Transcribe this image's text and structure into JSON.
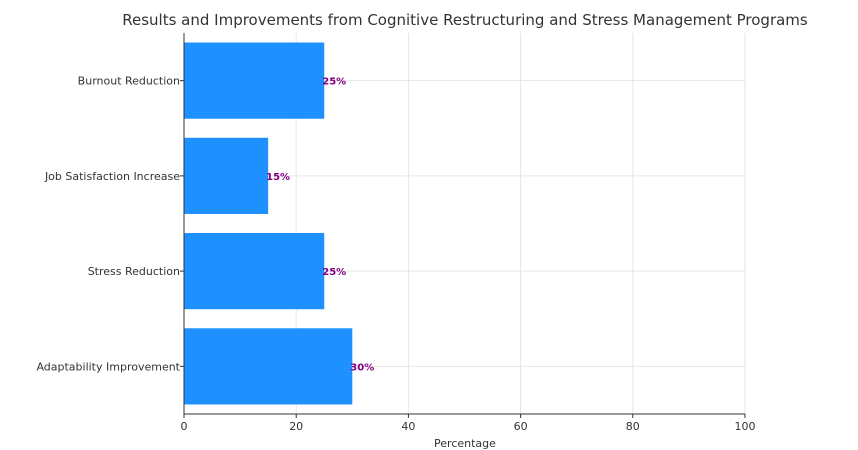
{
  "chart_data": {
    "type": "bar",
    "orientation": "horizontal",
    "title": "Results and Improvements from Cognitive Restructuring and Stress Management Programs",
    "xlabel": "Percentage",
    "ylabel": "",
    "categories": [
      "Adaptability Improvement",
      "Stress Reduction",
      "Job Satisfaction Increase",
      "Burnout Reduction"
    ],
    "values": [
      30,
      25,
      15,
      25
    ],
    "data_labels": [
      "30%",
      "25%",
      "15%",
      "25%"
    ],
    "xlim": [
      0,
      100
    ],
    "xticks": [
      0,
      20,
      40,
      60,
      80,
      100
    ],
    "grid": true,
    "bar_color": "#1e90ff",
    "label_color": "#800080"
  }
}
